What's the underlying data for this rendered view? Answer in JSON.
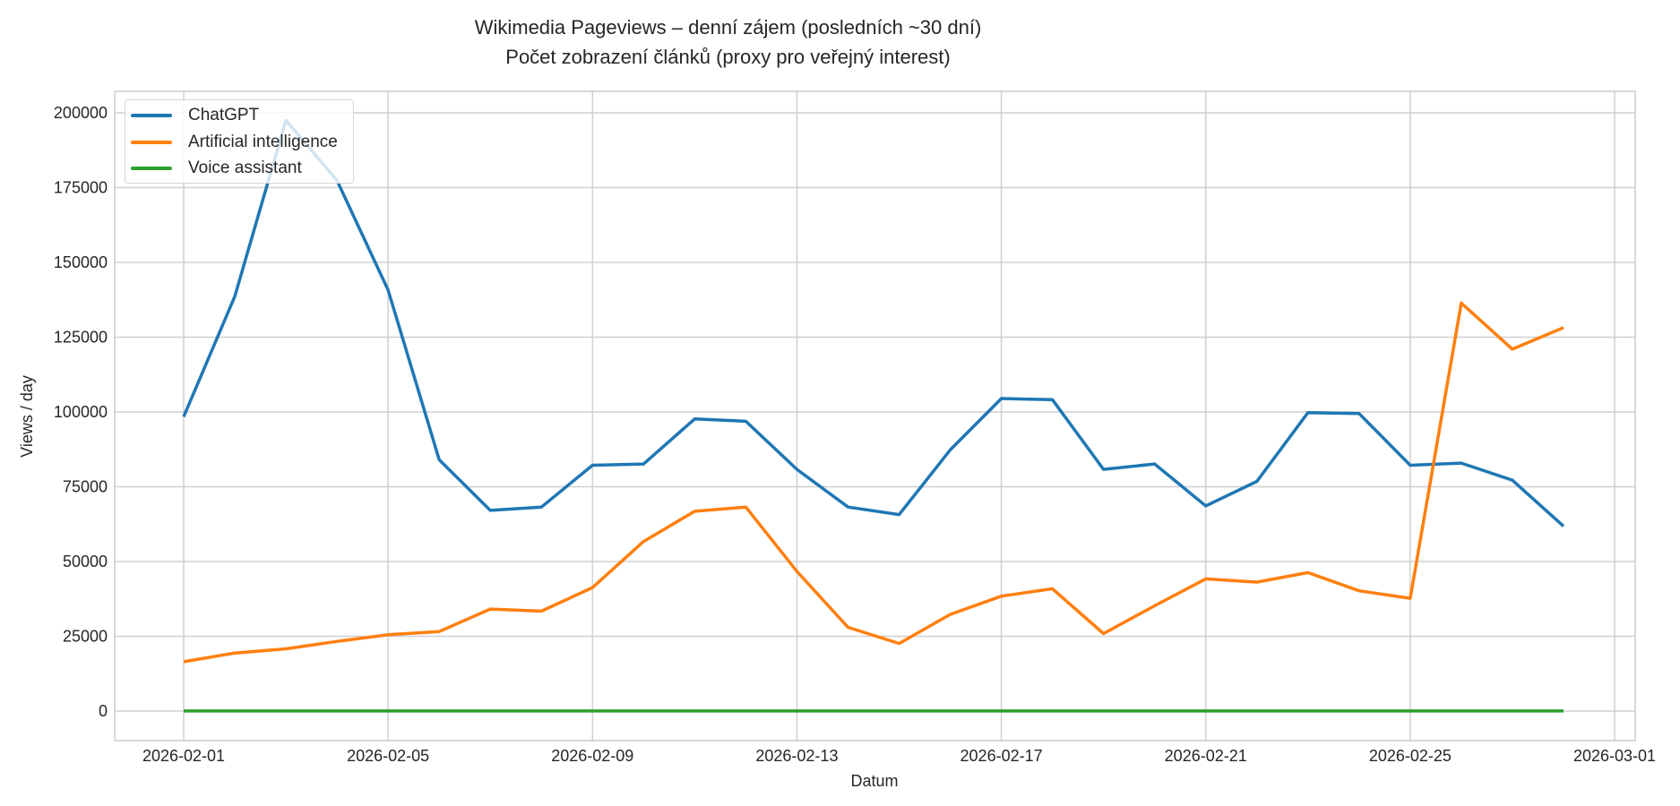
{
  "title_line1": "Wikimedia Pageviews – denní zájem (posledních ~30 dní)",
  "title_line2": "Počet zobrazení článků (proxy pro veřejný interest)",
  "colors": {
    "ChatGPT": "#1f77b4",
    "Artificial intelligence": "#ff7f0e",
    "Voice assistant": "#2ca02c",
    "grid": "#d0d0d0",
    "frame": "#cccccc"
  },
  "legend": [
    {
      "label": "ChatGPT",
      "color": "#1f77b4"
    },
    {
      "label": "Artificial intelligence",
      "color": "#ff7f0e"
    },
    {
      "label": "Voice assistant",
      "color": "#2ca02c"
    }
  ],
  "chart_data": {
    "type": "line",
    "title": "Wikimedia Pageviews – denní zájem (posledních ~30 dní)\nPočet zobrazení článků (proxy pro veřejný interest)",
    "xlabel": "Datum",
    "ylabel": "Views / day",
    "ylim": [
      -10000,
      207000
    ],
    "yticks": [
      0,
      25000,
      50000,
      75000,
      100000,
      125000,
      150000,
      175000,
      200000
    ],
    "xticks": [
      "2026-02-01",
      "2026-02-05",
      "2026-02-09",
      "2026-02-13",
      "2026-02-17",
      "2026-02-21",
      "2026-02-25",
      "2026-03-01"
    ],
    "grid": true,
    "legend_position": "upper left",
    "x": [
      "2026-02-01",
      "2026-02-02",
      "2026-02-03",
      "2026-02-04",
      "2026-02-05",
      "2026-02-06",
      "2026-02-07",
      "2026-02-08",
      "2026-02-09",
      "2026-02-10",
      "2026-02-11",
      "2026-02-12",
      "2026-02-13",
      "2026-02-14",
      "2026-02-15",
      "2026-02-16",
      "2026-02-17",
      "2026-02-18",
      "2026-02-19",
      "2026-02-20",
      "2026-02-21",
      "2026-02-22",
      "2026-02-23",
      "2026-02-24",
      "2026-02-25",
      "2026-02-26",
      "2026-02-27",
      "2026-02-28"
    ],
    "series": [
      {
        "name": "ChatGPT",
        "values": [
          98400,
          138600,
          197500,
          177400,
          140800,
          84000,
          67100,
          68200,
          82200,
          82600,
          97700,
          96900,
          80800,
          68200,
          65700,
          87300,
          104500,
          104100,
          80800,
          82600,
          68600,
          76800,
          99800,
          99500,
          82200,
          82900,
          77200,
          61800
        ]
      },
      {
        "name": "Artificial intelligence",
        "values": [
          16500,
          19400,
          20800,
          23300,
          25500,
          26600,
          34100,
          33400,
          41300,
          56700,
          66800,
          68200,
          46700,
          28000,
          22600,
          32300,
          38400,
          40900,
          25900,
          35200,
          44200,
          43100,
          46300,
          40200,
          37700,
          136400,
          121000,
          128200
        ]
      },
      {
        "name": "Voice assistant",
        "values": [
          20,
          20,
          20,
          20,
          20,
          20,
          20,
          20,
          20,
          20,
          20,
          20,
          20,
          20,
          20,
          20,
          20,
          20,
          20,
          20,
          20,
          20,
          20,
          20,
          20,
          20,
          20,
          20
        ]
      }
    ]
  }
}
